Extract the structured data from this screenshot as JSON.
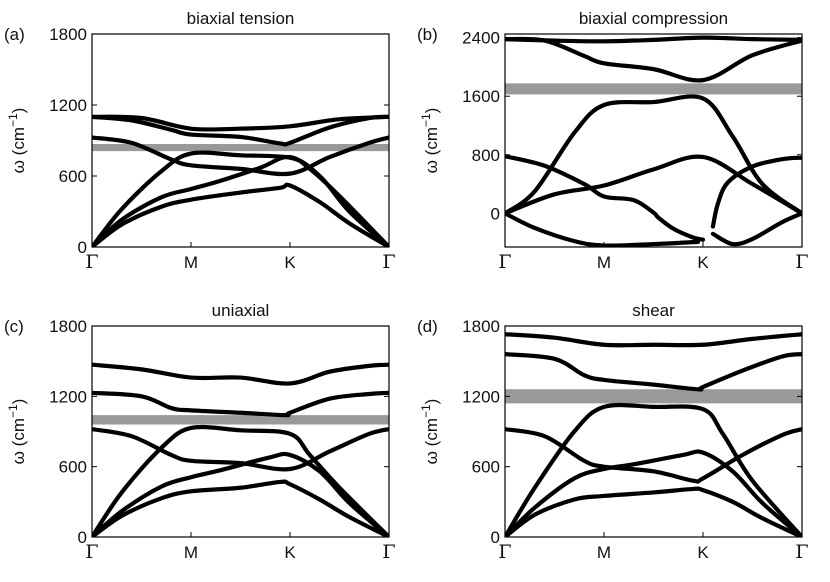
{
  "chart_data": [
    {
      "type": "line",
      "panel_label": "(a)",
      "title": "biaxial tension",
      "ylabel_symbol": "ω",
      "ylabel_unit_base": "(cm",
      "ylabel_unit_exp": "−1",
      "ylabel_unit_close": ")",
      "ylim": [
        0,
        1800
      ],
      "yticks": [
        0,
        600,
        1200,
        1800
      ],
      "ytick_labels": [
        "0",
        "600",
        "1200",
        "1800"
      ],
      "xtick_positions": [
        0,
        1,
        2,
        3
      ],
      "xtick_labels": [
        "Γ",
        "M",
        "K",
        "Γ"
      ],
      "band_line": {
        "value": 840,
        "thickness": 60,
        "color": "#999999"
      },
      "series": [
        {
          "name": "branch-1",
          "x": [
            0,
            0.3,
            0.7,
            1,
            1.5,
            1.9,
            2,
            2.3,
            2.6,
            3
          ],
          "y": [
            0,
            190,
            340,
            400,
            460,
            500,
            520,
            380,
            200,
            0
          ]
        },
        {
          "name": "branch-2",
          "x": [
            0,
            0.3,
            0.7,
            1,
            1.3,
            1.7,
            2,
            2.3,
            2.6,
            3
          ],
          "y": [
            0,
            230,
            420,
            490,
            560,
            670,
            760,
            600,
            300,
            0
          ]
        },
        {
          "name": "branch-3",
          "x": [
            0,
            0.3,
            0.7,
            1,
            1.5,
            2,
            2.2,
            2.5,
            3
          ],
          "y": [
            0,
            320,
            640,
            790,
            775,
            755,
            660,
            430,
            0
          ]
        },
        {
          "name": "branch-4",
          "x": [
            0,
            0.4,
            0.8,
            1,
            1.5,
            2,
            2.4,
            2.8,
            3
          ],
          "y": [
            925,
            880,
            740,
            690,
            660,
            620,
            760,
            880,
            925
          ]
        },
        {
          "name": "branch-5",
          "x": [
            0,
            0.4,
            0.8,
            1,
            1.5,
            1.9,
            2,
            2.4,
            2.8,
            3
          ],
          "y": [
            1100,
            1070,
            990,
            950,
            930,
            875,
            880,
            1010,
            1090,
            1100
          ]
        },
        {
          "name": "branch-6",
          "x": [
            0,
            0.5,
            1,
            1.5,
            2,
            2.5,
            3
          ],
          "y": [
            1100,
            1090,
            1000,
            1000,
            1020,
            1080,
            1100
          ]
        }
      ]
    },
    {
      "type": "line",
      "panel_label": "(b)",
      "title": "biaxial compression",
      "ylabel_symbol": "ω",
      "ylabel_unit_base": "(cm",
      "ylabel_unit_exp": "−1",
      "ylabel_unit_close": ")",
      "ylim": [
        -460,
        2450
      ],
      "yticks": [
        0,
        800,
        1600,
        2400
      ],
      "ytick_labels": [
        "0",
        "800",
        "1600",
        "2400"
      ],
      "xtick_positions": [
        0,
        1,
        2,
        3
      ],
      "xtick_labels": [
        "Γ",
        "M",
        "K",
        "Γ"
      ],
      "band_line": {
        "value": 1700,
        "thickness": 150,
        "color": "#999999"
      },
      "series": [
        {
          "name": "branch-1",
          "x": [
            0,
            0.3,
            0.7,
            1,
            1.5,
            2,
            2.3,
            2.6,
            3
          ],
          "y": [
            0,
            300,
            1100,
            1480,
            1520,
            1570,
            1050,
            400,
            0
          ]
        },
        {
          "name": "branch-2",
          "x": [
            0,
            0.5,
            1,
            1.5,
            2,
            2.5,
            3
          ],
          "y": [
            0,
            260,
            380,
            600,
            770,
            400,
            0
          ]
        },
        {
          "name": "branch-3",
          "x": [
            0,
            0.3,
            0.7,
            1,
            1.5,
            1.95
          ],
          "y": [
            0,
            -200,
            -380,
            -440,
            -420,
            -390
          ]
        },
        {
          "name": "branch-4",
          "x": [
            0,
            0.4,
            0.8,
            1,
            1.3,
            1.5,
            1.55,
            1.7,
            1.9,
            2
          ],
          "y": [
            780,
            650,
            400,
            230,
            180,
            10,
            -60,
            -210,
            -330,
            -360
          ]
        },
        {
          "name": "branch-5",
          "x": [
            2.1,
            2.3,
            2.5,
            2.8,
            3
          ],
          "y": [
            -280,
            -420,
            -350,
            -120,
            0
          ]
        },
        {
          "name": "branch-6",
          "x": [
            2.1,
            2.15,
            2.25,
            2.5,
            2.8,
            3
          ],
          "y": [
            -180,
            130,
            420,
            640,
            740,
            760
          ]
        },
        {
          "name": "branch-7",
          "x": [
            0,
            0.4,
            0.8,
            1,
            1.5,
            2,
            2.5,
            3
          ],
          "y": [
            2380,
            2360,
            2150,
            2050,
            1970,
            1820,
            2160,
            2360
          ]
        },
        {
          "name": "branch-8",
          "x": [
            0,
            0.5,
            1,
            1.5,
            2,
            2.5,
            3
          ],
          "y": [
            2380,
            2360,
            2350,
            2370,
            2400,
            2380,
            2370
          ]
        }
      ]
    },
    {
      "type": "line",
      "panel_label": "(c)",
      "title": "uniaxial",
      "ylabel_symbol": "ω",
      "ylabel_unit_base": "(cm",
      "ylabel_unit_exp": "−1",
      "ylabel_unit_close": ")",
      "ylim": [
        0,
        1800
      ],
      "yticks": [
        0,
        600,
        1200,
        1800
      ],
      "ytick_labels": [
        "0",
        "600",
        "1200",
        "1800"
      ],
      "xtick_positions": [
        0,
        1,
        2,
        3
      ],
      "xtick_labels": [
        "Γ",
        "M",
        "K",
        "Γ"
      ],
      "band_line": {
        "value": 1000,
        "thickness": 80,
        "color": "#999999"
      },
      "series": [
        {
          "name": "branch-1",
          "x": [
            0,
            0.3,
            0.7,
            1,
            1.5,
            1.9,
            2,
            2.3,
            2.6,
            3
          ],
          "y": [
            0,
            180,
            330,
            390,
            420,
            470,
            450,
            320,
            170,
            0
          ]
        },
        {
          "name": "branch-2",
          "x": [
            0,
            0.3,
            0.7,
            1,
            1.3,
            1.8,
            2,
            2.3,
            2.6,
            3
          ],
          "y": [
            0,
            220,
            430,
            510,
            570,
            680,
            700,
            560,
            290,
            0
          ]
        },
        {
          "name": "branch-3",
          "x": [
            0,
            0.3,
            0.7,
            1,
            1.5,
            2,
            2.2,
            2.5,
            3
          ],
          "y": [
            0,
            380,
            760,
            930,
            910,
            880,
            700,
            420,
            0
          ]
        },
        {
          "name": "branch-4",
          "x": [
            0,
            0.4,
            0.8,
            1,
            1.5,
            2,
            2.4,
            2.8,
            3
          ],
          "y": [
            920,
            860,
            700,
            650,
            630,
            580,
            730,
            880,
            920
          ]
        },
        {
          "name": "branch-5",
          "x": [
            0,
            0.5,
            0.8,
            1,
            1.5,
            1.95,
            2,
            2.4,
            2.8,
            3
          ],
          "y": [
            1230,
            1200,
            1100,
            1080,
            1060,
            1040,
            1060,
            1180,
            1220,
            1230
          ]
        },
        {
          "name": "branch-6",
          "x": [
            0,
            0.5,
            1,
            1.5,
            2,
            2.4,
            2.8,
            3
          ],
          "y": [
            1470,
            1430,
            1360,
            1360,
            1310,
            1410,
            1460,
            1470
          ]
        }
      ]
    },
    {
      "type": "line",
      "panel_label": "(d)",
      "title": "shear",
      "ylabel_symbol": "ω",
      "ylabel_unit_base": "(cm",
      "ylabel_unit_exp": "−1",
      "ylabel_unit_close": ")",
      "ylim": [
        0,
        1800
      ],
      "yticks": [
        0,
        600,
        1200,
        1800
      ],
      "ytick_labels": [
        "0",
        "600",
        "1200",
        "1800"
      ],
      "xtick_positions": [
        0,
        1,
        2,
        3
      ],
      "xtick_labels": [
        "Γ",
        "M",
        "K",
        "Γ"
      ],
      "band_line": {
        "value": 1200,
        "thickness": 120,
        "color": "#999999"
      },
      "series": [
        {
          "name": "branch-1",
          "x": [
            0,
            0.3,
            0.7,
            1,
            1.5,
            1.9,
            2,
            2.3,
            2.6,
            3
          ],
          "y": [
            0,
            190,
            320,
            350,
            380,
            410,
            400,
            300,
            160,
            0
          ]
        },
        {
          "name": "branch-2",
          "x": [
            0,
            0.3,
            0.7,
            1,
            1.3,
            1.8,
            2,
            2.3,
            2.6,
            3
          ],
          "y": [
            0,
            250,
            500,
            580,
            620,
            700,
            720,
            560,
            290,
            0
          ]
        },
        {
          "name": "branch-3",
          "x": [
            0,
            0.3,
            0.7,
            1,
            1.5,
            2,
            2.2,
            2.5,
            3
          ],
          "y": [
            0,
            420,
            900,
            1110,
            1110,
            1090,
            880,
            480,
            0
          ]
        },
        {
          "name": "branch-4",
          "x": [
            0,
            0.4,
            0.8,
            1,
            1.5,
            1.9,
            2,
            2.4,
            2.8,
            3
          ],
          "y": [
            920,
            860,
            650,
            600,
            560,
            480,
            500,
            700,
            870,
            920
          ]
        },
        {
          "name": "branch-5",
          "x": [
            0,
            0.5,
            0.8,
            1,
            1.5,
            1.95,
            2,
            2.4,
            2.8,
            3
          ],
          "y": [
            1560,
            1520,
            1380,
            1340,
            1300,
            1260,
            1280,
            1420,
            1540,
            1560
          ]
        },
        {
          "name": "branch-6",
          "x": [
            0,
            0.5,
            1,
            1.5,
            2,
            2.5,
            3
          ],
          "y": [
            1730,
            1700,
            1640,
            1640,
            1640,
            1690,
            1730
          ]
        }
      ]
    }
  ]
}
